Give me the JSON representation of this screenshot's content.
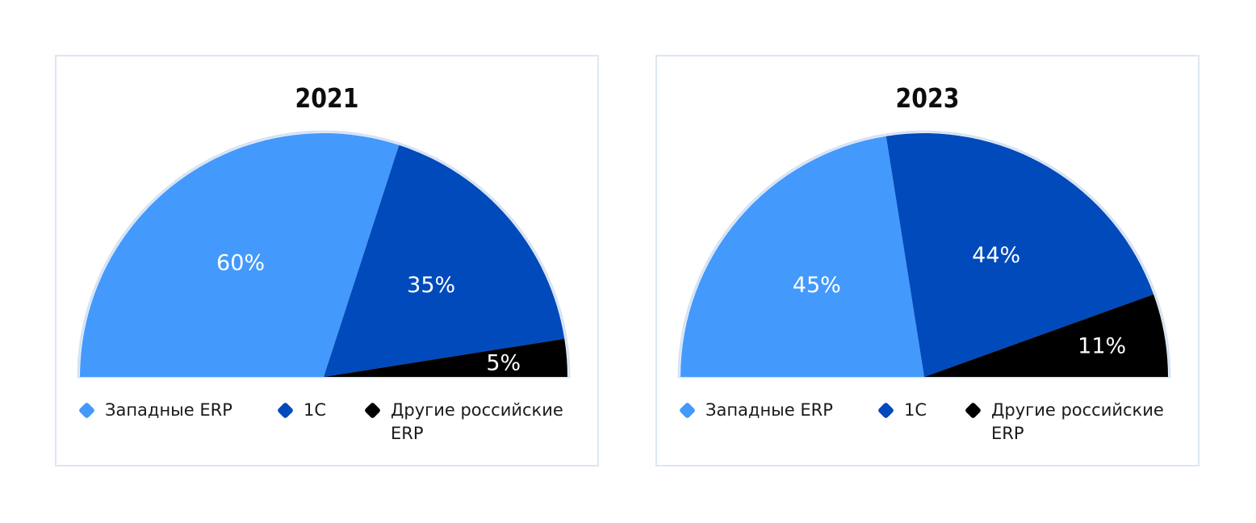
{
  "chart_data": [
    {
      "type": "pie",
      "variant": "semicircle",
      "title": "2021",
      "categories": [
        "Западные ERP",
        "1С",
        "Другие российские ERP"
      ],
      "values": [
        60,
        35,
        5
      ],
      "labels": [
        "60%",
        "35%",
        "5%"
      ],
      "colors": [
        "#4499fc",
        "#004abb",
        "#000000"
      ],
      "legend": "bottom"
    },
    {
      "type": "pie",
      "variant": "semicircle",
      "title": "2023",
      "categories": [
        "Западные ERP",
        "1С",
        "Другие российские ERP"
      ],
      "values": [
        45,
        44,
        11
      ],
      "labels": [
        "45%",
        "44%",
        "11%"
      ],
      "colors": [
        "#4499fc",
        "#004abb",
        "#000000"
      ],
      "legend": "bottom"
    }
  ]
}
